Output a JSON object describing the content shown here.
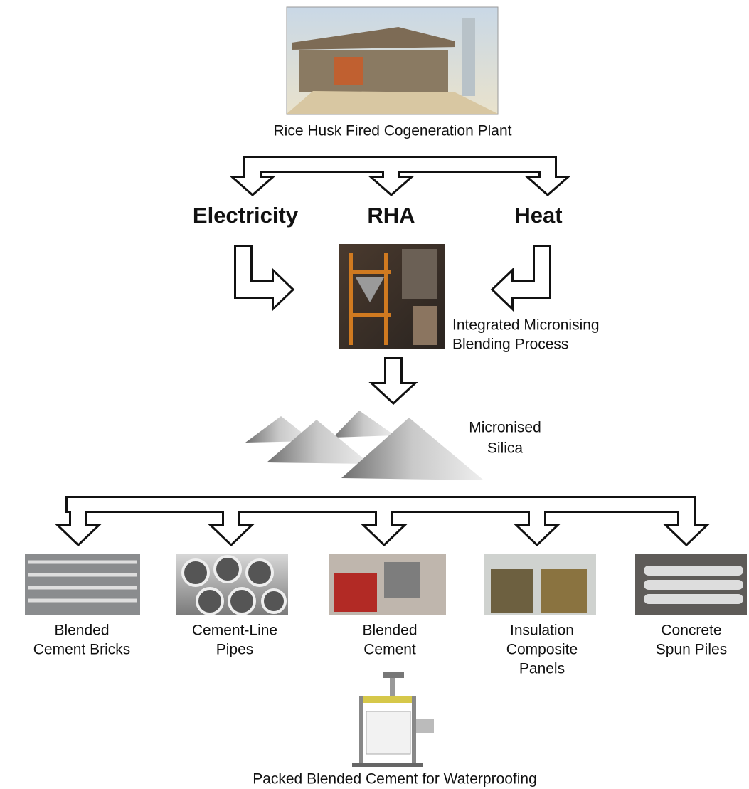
{
  "source": {
    "label": "Rice Husk Fired Cogeneration Plant"
  },
  "outputs": [
    "Electricity",
    "RHA",
    "Heat"
  ],
  "process": {
    "label_lines": [
      "Integrated Micronising",
      "Blending Process"
    ]
  },
  "material": {
    "label_lines": [
      "Micronised",
      "Silica"
    ]
  },
  "products": [
    {
      "label_lines": [
        "Blended",
        "Cement Bricks"
      ]
    },
    {
      "label_lines": [
        "Cement-Line",
        "Pipes"
      ]
    },
    {
      "label_lines": [
        "Blended",
        "Cement"
      ]
    },
    {
      "label_lines": [
        "Insulation",
        "Composite",
        "Panels"
      ]
    },
    {
      "label_lines": [
        "Concrete",
        "Spun Piles"
      ]
    }
  ],
  "final": {
    "label": "Packed Blended Cement for Waterproofing"
  }
}
